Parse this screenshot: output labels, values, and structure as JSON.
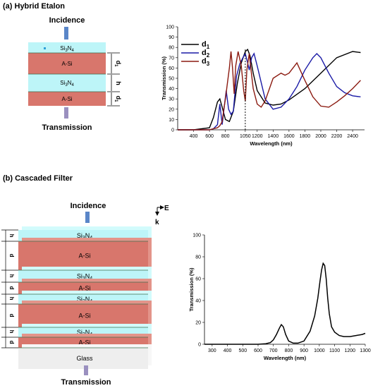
{
  "panel_a": {
    "title": "(a) Hybrid Etalon",
    "incidence": "Incidence",
    "transmission": "Transmission",
    "layers": [
      "Si3N4",
      "A-Si",
      "Si3N4",
      "A-Si"
    ],
    "dims": [
      "d",
      "h",
      "d"
    ]
  },
  "panel_b": {
    "title": "(b)  Cascaded Filter",
    "incidence": "Incidence",
    "transmission": "Transmission",
    "axis_e": "E",
    "axis_k": "k",
    "layers": [
      "Si3N4",
      "A-Si",
      "Si3N4",
      "A-Si",
      "Si3N4",
      "A-Si",
      "Si3N4",
      "A-Si",
      "Glass"
    ]
  },
  "chart_data": [
    {
      "type": "line",
      "xlabel": "Wavelength (nm)",
      "ylabel": "Transmission (%)",
      "xlim": [
        200,
        2550
      ],
      "ylim": [
        0,
        100
      ],
      "xticks": [
        400,
        600,
        800,
        1050,
        1200,
        1400,
        1600,
        1800,
        2000,
        2200,
        2400
      ],
      "yticks": [
        0,
        10,
        20,
        30,
        40,
        50,
        60,
        70,
        80,
        90,
        100
      ],
      "annotation_x": 1050,
      "legend": [
        "d1",
        "d2",
        "d3"
      ],
      "series": [
        {
          "name": "d1",
          "color": "#000000",
          "x": [
            200,
            400,
            600,
            650,
            700,
            730,
            760,
            800,
            850,
            900,
            950,
            1000,
            1050,
            1080,
            1110,
            1150,
            1200,
            1300,
            1400,
            1500,
            1600,
            1800,
            2000,
            2200,
            2400,
            2500
          ],
          "y": [
            0,
            0,
            2,
            12,
            27,
            30,
            22,
            10,
            8,
            18,
            45,
            65,
            76,
            78,
            72,
            55,
            38,
            26,
            24,
            25,
            29,
            40,
            55,
            70,
            76,
            75
          ]
        },
        {
          "name": "d2",
          "color": "#1a1aa6",
          "x": [
            200,
            400,
            600,
            650,
            700,
            730,
            760,
            790,
            810,
            840,
            870,
            900,
            940,
            980,
            1020,
            1050,
            1080,
            1100,
            1130,
            1160,
            1200,
            1300,
            1400,
            1500,
            1600,
            1700,
            1800,
            1900,
            1950,
            2000,
            2100,
            2200,
            2300,
            2400,
            2500
          ],
          "y": [
            0,
            0,
            0,
            1,
            5,
            25,
            5,
            25,
            38,
            20,
            15,
            18,
            52,
            64,
            70,
            74,
            65,
            58,
            70,
            74,
            62,
            30,
            20,
            22,
            30,
            42,
            58,
            70,
            74,
            70,
            55,
            42,
            36,
            33,
            32
          ]
        },
        {
          "name": "d3",
          "color": "#8b1a10",
          "x": [
            200,
            400,
            600,
            650,
            700,
            730,
            760,
            780,
            800,
            820,
            850,
            870,
            890,
            910,
            930,
            960,
            1000,
            1030,
            1050,
            1070,
            1100,
            1120,
            1150,
            1200,
            1250,
            1300,
            1400,
            1500,
            1550,
            1600,
            1700,
            1800,
            1900,
            2000,
            2100,
            2200,
            2300,
            2400,
            2500
          ],
          "y": [
            0,
            0,
            0,
            1,
            2,
            4,
            8,
            20,
            30,
            42,
            60,
            76,
            60,
            35,
            62,
            76,
            62,
            38,
            28,
            58,
            74,
            60,
            40,
            25,
            22,
            28,
            50,
            55,
            53,
            55,
            65,
            48,
            32,
            23,
            22,
            27,
            33,
            40,
            48
          ]
        }
      ]
    },
    {
      "type": "line",
      "xlabel": "Wavelength (nm)",
      "ylabel": "Transmission (%)",
      "xlim": [
        250,
        1300
      ],
      "ylim": [
        0,
        100
      ],
      "xticks": [
        300,
        400,
        500,
        600,
        700,
        800,
        900,
        1000,
        1100,
        1200,
        1300
      ],
      "yticks": [
        0,
        20,
        40,
        60,
        80,
        100
      ],
      "series": [
        {
          "name": "",
          "color": "#000000",
          "x": [
            250,
            300,
            400,
            500,
            600,
            650,
            680,
            700,
            720,
            740,
            752,
            765,
            780,
            800,
            830,
            860,
            900,
            940,
            970,
            990,
            1005,
            1015,
            1025,
            1035,
            1045,
            1055,
            1065,
            1080,
            1100,
            1130,
            1160,
            1200,
            1240,
            1280,
            1300
          ],
          "y": [
            0,
            0,
            0,
            0,
            0,
            0.5,
            1.5,
            4,
            9,
            15,
            18,
            16,
            9,
            3,
            1,
            1,
            3,
            12,
            26,
            42,
            58,
            68,
            74,
            72,
            60,
            42,
            28,
            16,
            11,
            8,
            7,
            7,
            8,
            9,
            10
          ]
        }
      ]
    }
  ]
}
